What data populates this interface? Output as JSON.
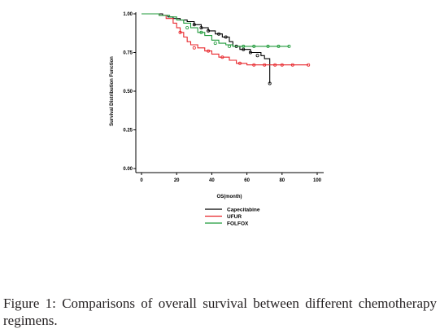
{
  "chart_data": {
    "type": "line",
    "title": "",
    "xlabel": "OS(month)",
    "ylabel": "Survival Distribution Function",
    "xlim": [
      0,
      100
    ],
    "ylim": [
      0,
      1
    ],
    "x_ticks": [
      "0",
      "20",
      "40",
      "60",
      "80",
      "100"
    ],
    "y_ticks": [
      "0.00",
      "0.25",
      "0.50",
      "0.75",
      "1.00"
    ],
    "legend_position": "bottom",
    "series": [
      {
        "name": "Capecitabine",
        "color": "#000000",
        "step": true,
        "x": [
          0,
          12,
          15,
          18,
          22,
          26,
          30,
          34,
          38,
          42,
          46,
          50,
          52,
          56,
          62,
          68,
          70,
          73
        ],
        "y": [
          1.0,
          0.99,
          0.98,
          0.97,
          0.96,
          0.95,
          0.93,
          0.91,
          0.89,
          0.87,
          0.85,
          0.82,
          0.79,
          0.77,
          0.75,
          0.73,
          0.71,
          0.55
        ],
        "censored_x": [
          30,
          34,
          38,
          44,
          48,
          54,
          58,
          62,
          66,
          73
        ],
        "censored_y": [
          0.93,
          0.91,
          0.89,
          0.87,
          0.85,
          0.79,
          0.77,
          0.75,
          0.73,
          0.55
        ]
      },
      {
        "name": "UFUR",
        "color": "#e8262b",
        "step": true,
        "x": [
          0,
          10,
          14,
          18,
          20,
          22,
          24,
          26,
          28,
          32,
          36,
          40,
          44,
          50,
          54,
          60,
          95
        ],
        "y": [
          1.0,
          0.99,
          0.97,
          0.94,
          0.91,
          0.88,
          0.85,
          0.82,
          0.8,
          0.78,
          0.76,
          0.74,
          0.72,
          0.7,
          0.68,
          0.67,
          0.67
        ],
        "censored_x": [
          22,
          30,
          38,
          46,
          56,
          64,
          70,
          76,
          80,
          86,
          95
        ],
        "censored_y": [
          0.88,
          0.78,
          0.76,
          0.72,
          0.68,
          0.67,
          0.67,
          0.67,
          0.67,
          0.67,
          0.67
        ]
      },
      {
        "name": "FOLFOX",
        "color": "#1f9a3a",
        "step": true,
        "x": [
          0,
          10,
          16,
          20,
          24,
          28,
          32,
          36,
          40,
          44,
          48,
          52,
          84
        ],
        "y": [
          1.0,
          0.99,
          0.98,
          0.96,
          0.94,
          0.91,
          0.88,
          0.86,
          0.83,
          0.81,
          0.8,
          0.79,
          0.79
        ],
        "censored_x": [
          26,
          34,
          42,
          50,
          58,
          64,
          72,
          78,
          84
        ],
        "censored_y": [
          0.91,
          0.88,
          0.81,
          0.79,
          0.79,
          0.79,
          0.79,
          0.79,
          0.79
        ]
      }
    ]
  },
  "caption": {
    "label": "Figure 1:",
    "text": "Comparisons of overall survival between different chemotherapy regimens."
  }
}
